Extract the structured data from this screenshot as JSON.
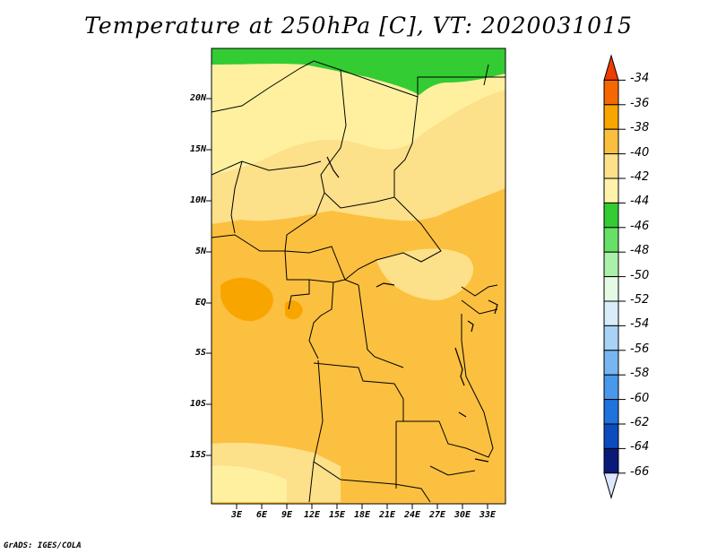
{
  "title": "Temperature at 250hPa [C], VT: 2020031015",
  "footer": "GrADS: IGES/COLA",
  "map": {
    "lat_labels": [
      "20N",
      "15N",
      "10N",
      "5N",
      "EQ",
      "5S",
      "10S",
      "15S"
    ],
    "lon_labels": [
      "3E",
      "6E",
      "9E",
      "12E",
      "15E",
      "18E",
      "21E",
      "24E",
      "27E",
      "30E",
      "33E"
    ],
    "colors": {
      "c44": "#33cc33",
      "c42": "#fff0a0",
      "c40": "#fde08a",
      "c38": "#fcc040",
      "c36": "#f9a500",
      "border": "#000000"
    }
  },
  "colorbar": {
    "levels": [
      "-34",
      "-36",
      "-38",
      "-40",
      "-42",
      "-44",
      "-46",
      "-48",
      "-50",
      "-52",
      "-54",
      "-56",
      "-58",
      "-60",
      "-62",
      "-64",
      "-66"
    ],
    "colors": [
      "#f03c00",
      "#f56800",
      "#f9a500",
      "#fbbf3f",
      "#fde08a",
      "#fff2ab",
      "#33cc33",
      "#66e066",
      "#aaf0aa",
      "#e4fae4",
      "#d8ecfa",
      "#a8d2f6",
      "#78b6f2",
      "#4898ec",
      "#1e74dc",
      "#0c4cc0",
      "#0a1a78",
      "#dde6ff"
    ]
  }
}
